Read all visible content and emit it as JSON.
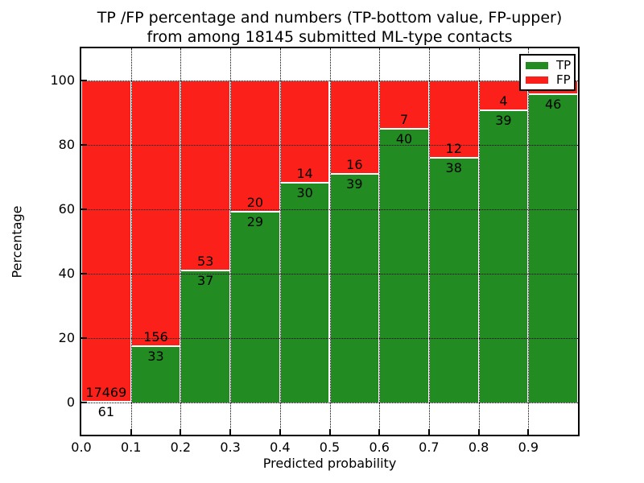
{
  "chart_data": {
    "type": "bar",
    "stacked": true,
    "title_line1": "TP /FP percentage and numbers (TP-bottom value, FP-upper)",
    "title_line2": "from among 18145 submitted ML-type contacts",
    "xlabel": "Predicted probability",
    "ylabel": "Percentage",
    "x_tick_labels": [
      "0.0",
      "0.1",
      "0.2",
      "0.3",
      "0.4",
      "0.5",
      "0.6",
      "0.7",
      "0.8",
      "0.9"
    ],
    "y_ticks": [
      0,
      20,
      40,
      60,
      80,
      100
    ],
    "xlim": [
      0.0,
      1.0
    ],
    "ylim": [
      -10,
      110
    ],
    "grid": "dotted",
    "tp_color": "#228b22",
    "fp_color": "#fc201a",
    "legend": {
      "position": "upper right",
      "entries": [
        {
          "label": "TP",
          "color": "#228b22"
        },
        {
          "label": "FP",
          "color": "#fc201a"
        }
      ]
    },
    "bars": [
      {
        "x_range": [
          0.0,
          0.1
        ],
        "tp_count": "61",
        "fp_count": "17469",
        "tp_pct": 0.35
      },
      {
        "x_range": [
          0.1,
          0.2
        ],
        "tp_count": "33",
        "fp_count": "156",
        "tp_pct": 17.46
      },
      {
        "x_range": [
          0.2,
          0.3
        ],
        "tp_count": "37",
        "fp_count": "53",
        "tp_pct": 41.11
      },
      {
        "x_range": [
          0.3,
          0.4
        ],
        "tp_count": "29",
        "fp_count": "20",
        "tp_pct": 59.18
      },
      {
        "x_range": [
          0.4,
          0.5
        ],
        "tp_count": "30",
        "fp_count": "14",
        "tp_pct": 68.18
      },
      {
        "x_range": [
          0.5,
          0.6
        ],
        "tp_count": "39",
        "fp_count": "16",
        "tp_pct": 70.91
      },
      {
        "x_range": [
          0.6,
          0.7
        ],
        "tp_count": "40",
        "fp_count": "7",
        "tp_pct": 85.11
      },
      {
        "x_range": [
          0.7,
          0.8
        ],
        "tp_count": "38",
        "fp_count": "12",
        "tp_pct": 76.0
      },
      {
        "x_range": [
          0.8,
          0.9
        ],
        "tp_count": "39",
        "fp_count": "4",
        "tp_pct": 90.7
      },
      {
        "x_range": [
          0.9,
          1.0
        ],
        "tp_count": "46",
        "fp_count": "",
        "tp_pct": 95.8
      }
    ]
  }
}
